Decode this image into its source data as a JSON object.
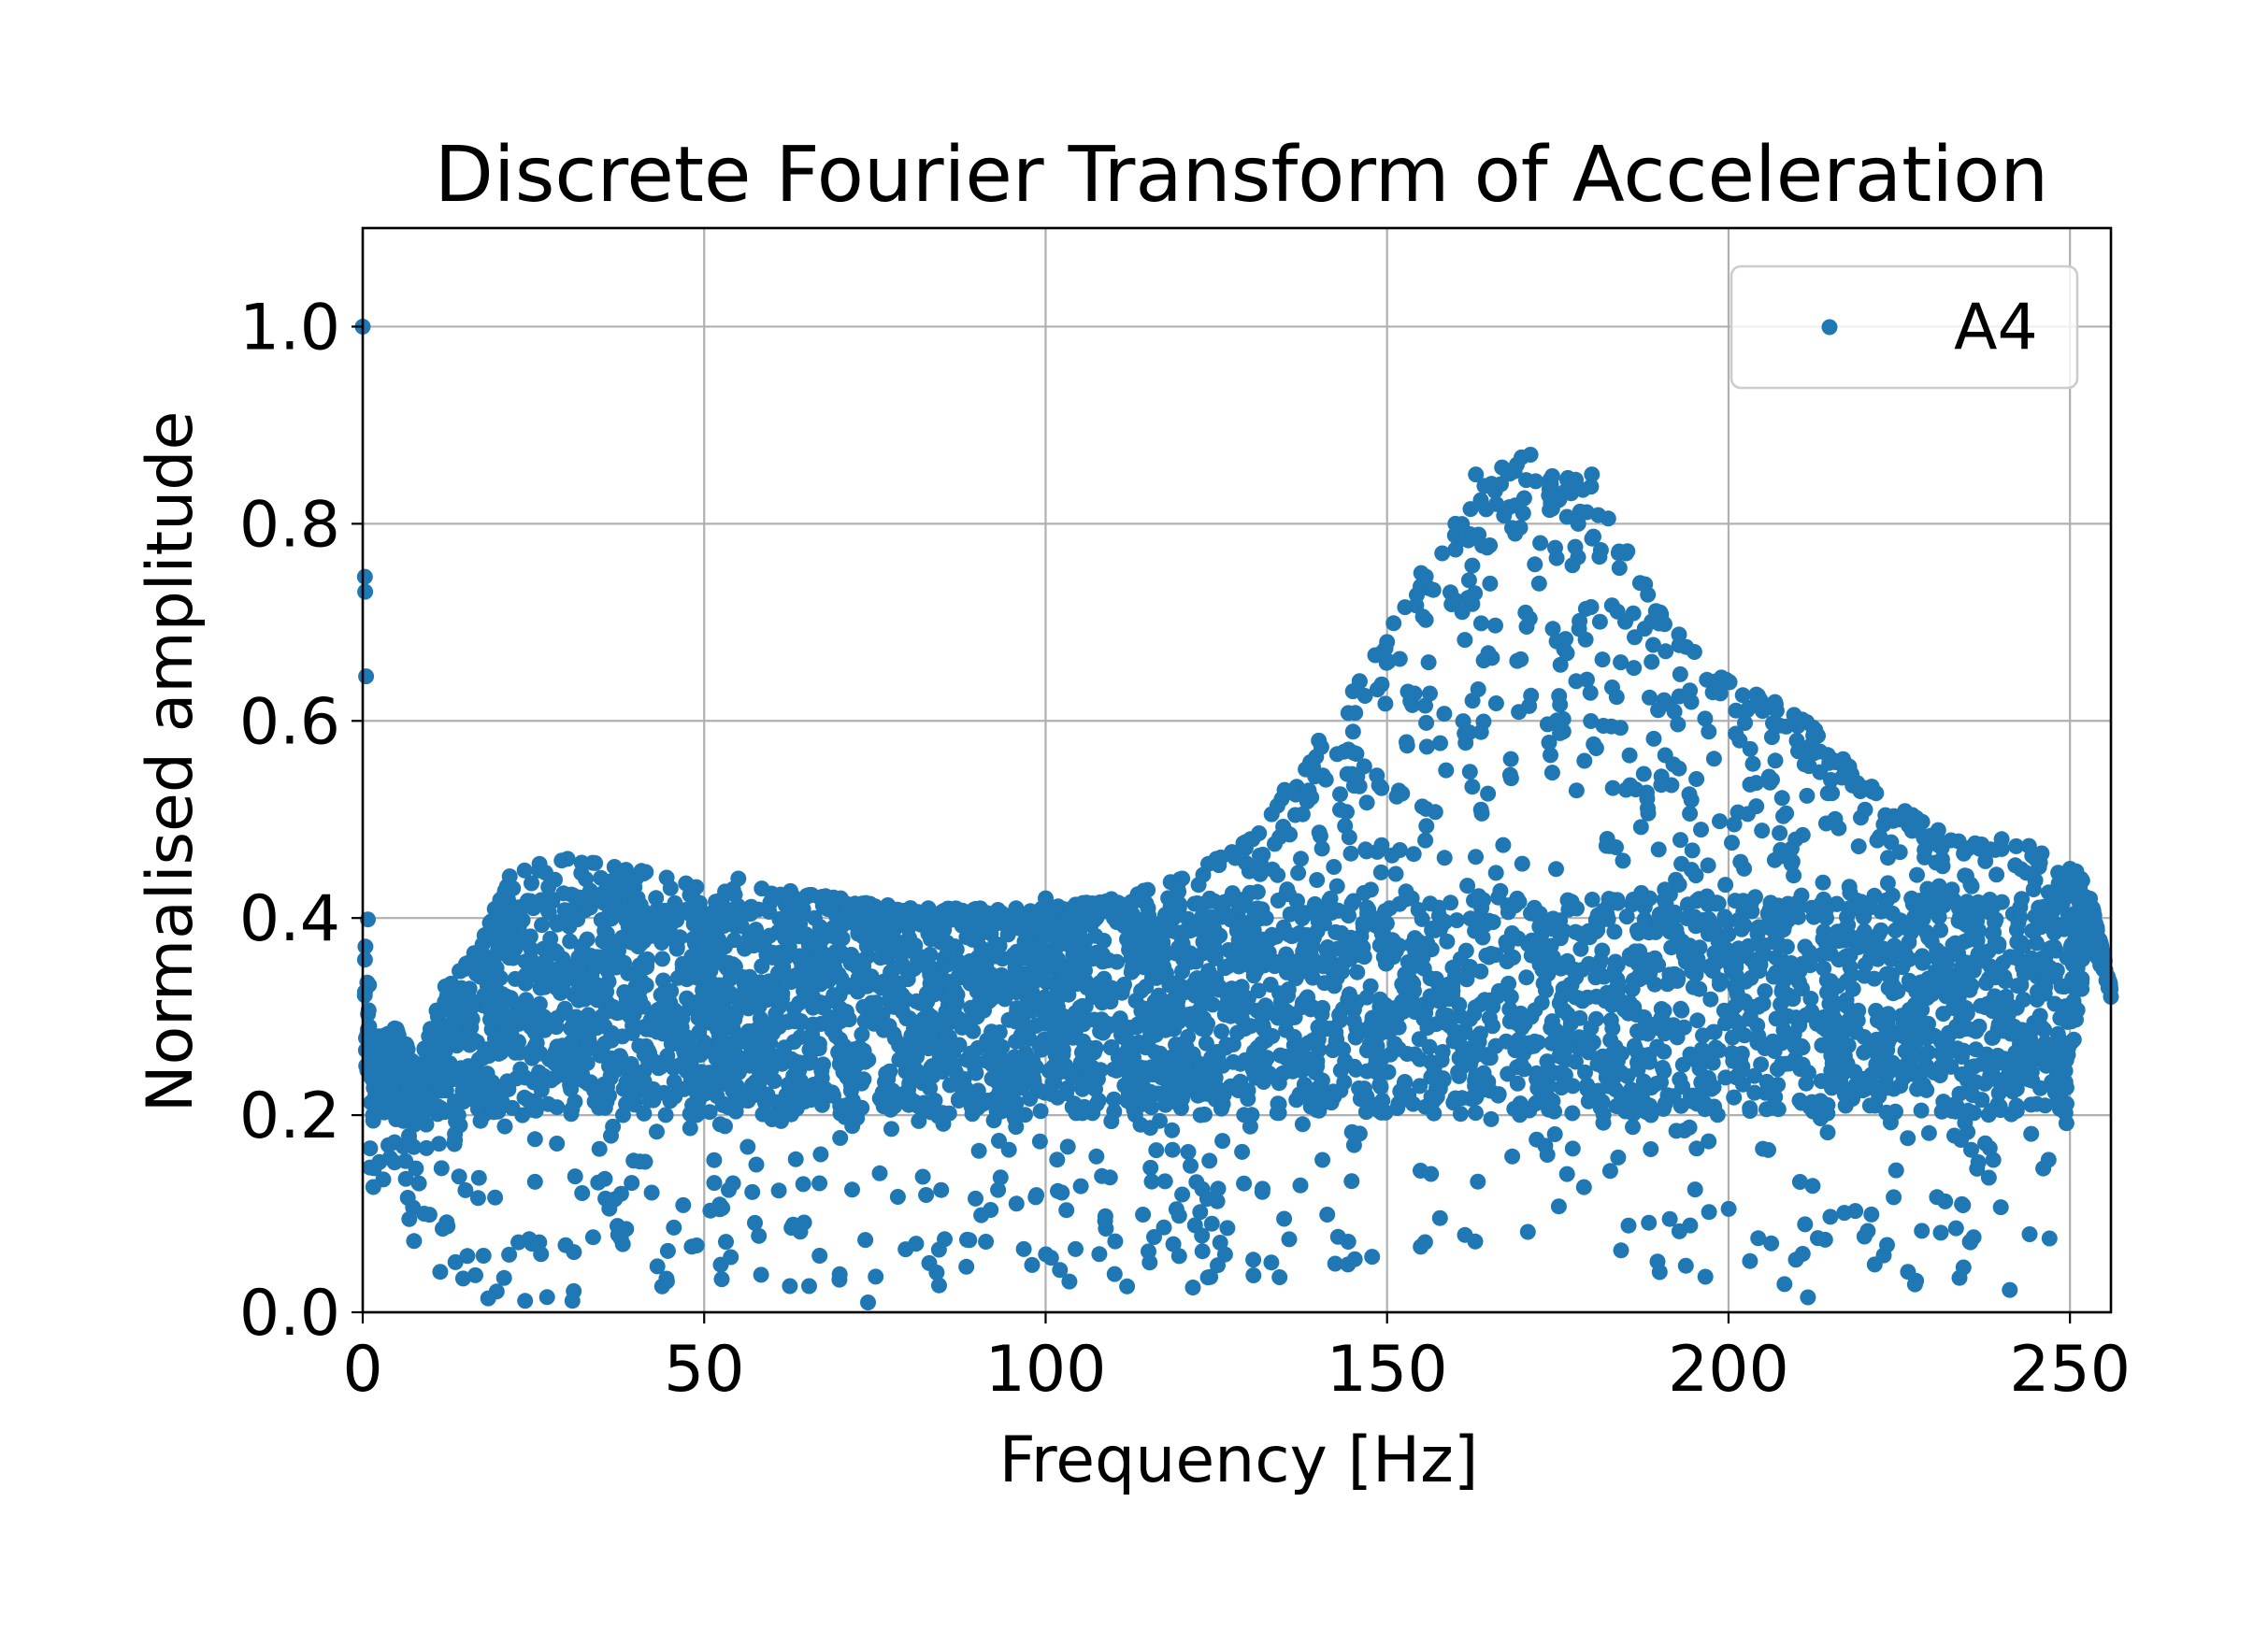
{
  "chart_data": {
    "type": "scatter",
    "title": "Discrete Fourier Transform of Acceleration",
    "xlabel": "Frequency [Hz]",
    "ylabel": "Normalised amplitude",
    "xlim": [
      0,
      256
    ],
    "ylim": [
      0,
      1.1
    ],
    "x_ticks": [
      0,
      50,
      100,
      150,
      200,
      250
    ],
    "y_ticks": [
      0.0,
      0.2,
      0.4,
      0.6,
      0.8,
      1.0
    ],
    "x_tick_labels": [
      "0",
      "50",
      "100",
      "150",
      "200",
      "250"
    ],
    "y_tick_labels": [
      "0.0",
      "0.2",
      "0.4",
      "0.6",
      "0.8",
      "1.0"
    ],
    "grid": true,
    "legend_position": "top-right",
    "series": [
      {
        "name": "A4",
        "color": "#1f77b4",
        "envelope_x": [
          0,
          1,
          3,
          5,
          8,
          12,
          16,
          22,
          30,
          40,
          50,
          60,
          70,
          80,
          90,
          100,
          110,
          120,
          130,
          140,
          150,
          160,
          165,
          170,
          175,
          180,
          190,
          200,
          210,
          220,
          230,
          240,
          246,
          249,
          251,
          253,
          256
        ],
        "envelope_upper": [
          1.0,
          0.28,
          0.28,
          0.29,
          0.25,
          0.33,
          0.36,
          0.45,
          0.46,
          0.45,
          0.43,
          0.43,
          0.42,
          0.41,
          0.41,
          0.41,
          0.42,
          0.44,
          0.48,
          0.57,
          0.69,
          0.79,
          0.85,
          0.87,
          0.85,
          0.84,
          0.71,
          0.64,
          0.61,
          0.54,
          0.49,
          0.48,
          0.47,
          0.44,
          0.45,
          0.42,
          0.33
        ],
        "envelope_lower": [
          0.08,
          0.1,
          0.13,
          0.15,
          0.05,
          0.02,
          0.01,
          0.01,
          0.01,
          0.01,
          0.02,
          0.02,
          0.01,
          0.02,
          0.02,
          0.03,
          0.02,
          0.02,
          0.02,
          0.03,
          0.03,
          0.04,
          0.05,
          0.06,
          0.04,
          0.03,
          0.03,
          0.03,
          0.01,
          0.02,
          0.02,
          0.02,
          0.02,
          0.15,
          0.3,
          0.38,
          0.32
        ],
        "dense_band": [
          0.2,
          0.4
        ],
        "sampled_points": [
          [
            0,
            1.0
          ],
          [
            0.5,
            0.25
          ],
          [
            1.5,
            0.2
          ],
          [
            2.5,
            0.27
          ],
          [
            3.5,
            0.22
          ],
          [
            4.5,
            0.28
          ],
          [
            5.5,
            0.2
          ],
          [
            7,
            0.23
          ],
          [
            9,
            0.1
          ],
          [
            11,
            0.3
          ],
          [
            14,
            0.2
          ],
          [
            18,
            0.35
          ],
          [
            22,
            0.43
          ],
          [
            25,
            0.41
          ],
          [
            30,
            0.46
          ],
          [
            35,
            0.3
          ],
          [
            40,
            0.44
          ],
          [
            45,
            0.38
          ],
          [
            50,
            0.35
          ],
          [
            55,
            0.44
          ],
          [
            60,
            0.36
          ],
          [
            65,
            0.33
          ],
          [
            70,
            0.42
          ],
          [
            74,
            0.01
          ],
          [
            80,
            0.38
          ],
          [
            85,
            0.35
          ],
          [
            90,
            0.39
          ],
          [
            95,
            0.36
          ],
          [
            100,
            0.42
          ],
          [
            105,
            0.37
          ],
          [
            110,
            0.4
          ],
          [
            115,
            0.41
          ],
          [
            120,
            0.44
          ],
          [
            125,
            0.46
          ],
          [
            130,
            0.48
          ],
          [
            135,
            0.53
          ],
          [
            140,
            0.58
          ],
          [
            145,
            0.63
          ],
          [
            150,
            0.68
          ],
          [
            155,
            0.75
          ],
          [
            160,
            0.8
          ],
          [
            163,
            0.85
          ],
          [
            166,
            0.82
          ],
          [
            169,
            0.86
          ],
          [
            171,
            0.87
          ],
          [
            174,
            0.84
          ],
          [
            178,
            0.8
          ],
          [
            180,
            0.85
          ],
          [
            185,
            0.77
          ],
          [
            190,
            0.71
          ],
          [
            195,
            0.67
          ],
          [
            200,
            0.64
          ],
          [
            205,
            0.61
          ],
          [
            210,
            0.58
          ],
          [
            215,
            0.54
          ],
          [
            220,
            0.51
          ],
          [
            225,
            0.5
          ],
          [
            230,
            0.48
          ],
          [
            235,
            0.47
          ],
          [
            240,
            0.47
          ],
          [
            245,
            0.46
          ],
          [
            250,
            0.45
          ],
          [
            252,
            0.42
          ],
          [
            254,
            0.38
          ],
          [
            256,
            0.32
          ]
        ]
      }
    ]
  }
}
